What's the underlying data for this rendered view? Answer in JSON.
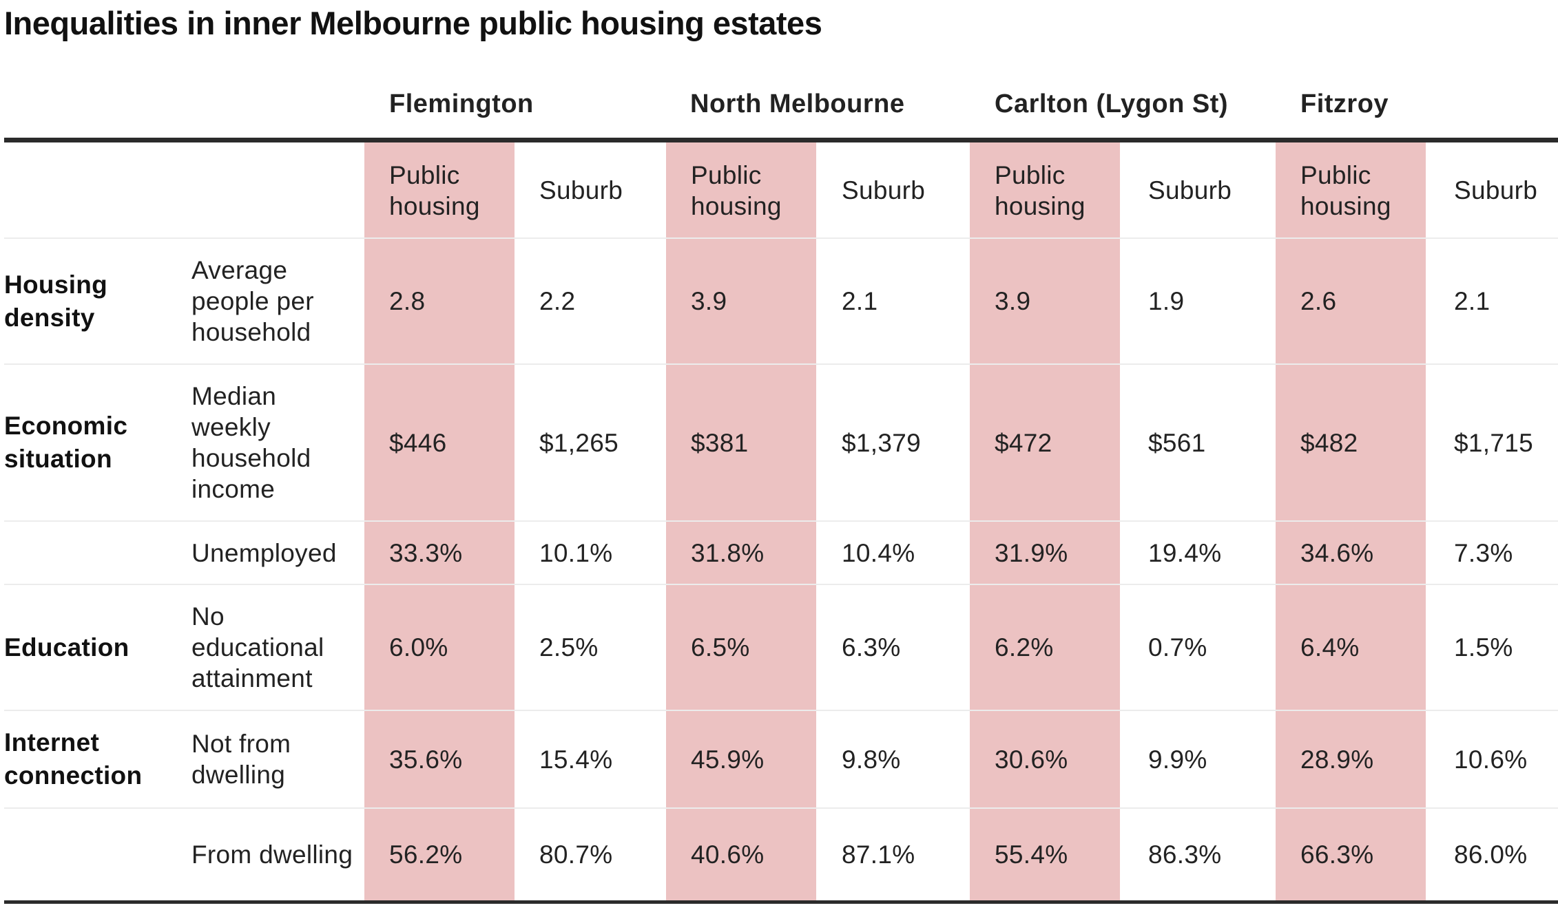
{
  "chart_data": {
    "type": "table",
    "title": "Inequalities in inner Melbourne public housing estates",
    "groups": [
      "Flemington",
      "North Melbourne",
      "Carlton (Lygon St)",
      "Fitzroy"
    ],
    "subheaders": [
      "Public housing",
      "Suburb"
    ],
    "rows": [
      {
        "category": "Housing density",
        "measure": "Average people per household",
        "values": [
          "2.8",
          "2.2",
          "3.9",
          "2.1",
          "3.9",
          "1.9",
          "2.6",
          "2.1"
        ]
      },
      {
        "category": "Economic situation",
        "measure": "Median weekly household income",
        "values": [
          "$446",
          "$1,265",
          "$381",
          "$1,379",
          "$472",
          "$561",
          "$482",
          "$1,715"
        ]
      },
      {
        "category": "",
        "measure": "Unemployed",
        "values": [
          "33.3%",
          "10.1%",
          "31.8%",
          "10.4%",
          "31.9%",
          "19.4%",
          "34.6%",
          "7.3%"
        ]
      },
      {
        "category": "Education",
        "measure": "No educational attainment",
        "values": [
          "6.0%",
          "2.5%",
          "6.5%",
          "6.3%",
          "6.2%",
          "0.7%",
          "6.4%",
          "1.5%"
        ]
      },
      {
        "category": "Internet connection",
        "measure": "Not from dwelling",
        "values": [
          "35.6%",
          "15.4%",
          "45.9%",
          "9.8%",
          "30.6%",
          "9.9%",
          "28.9%",
          "10.6%"
        ]
      },
      {
        "category": "",
        "measure": "From dwelling",
        "values": [
          "56.2%",
          "80.7%",
          "40.6%",
          "87.1%",
          "55.4%",
          "86.3%",
          "66.3%",
          "86.0%"
        ]
      }
    ],
    "highlight_color": "#ecc2c2",
    "rule_color": "#2b2b2b",
    "separator_color": "#ececec"
  }
}
